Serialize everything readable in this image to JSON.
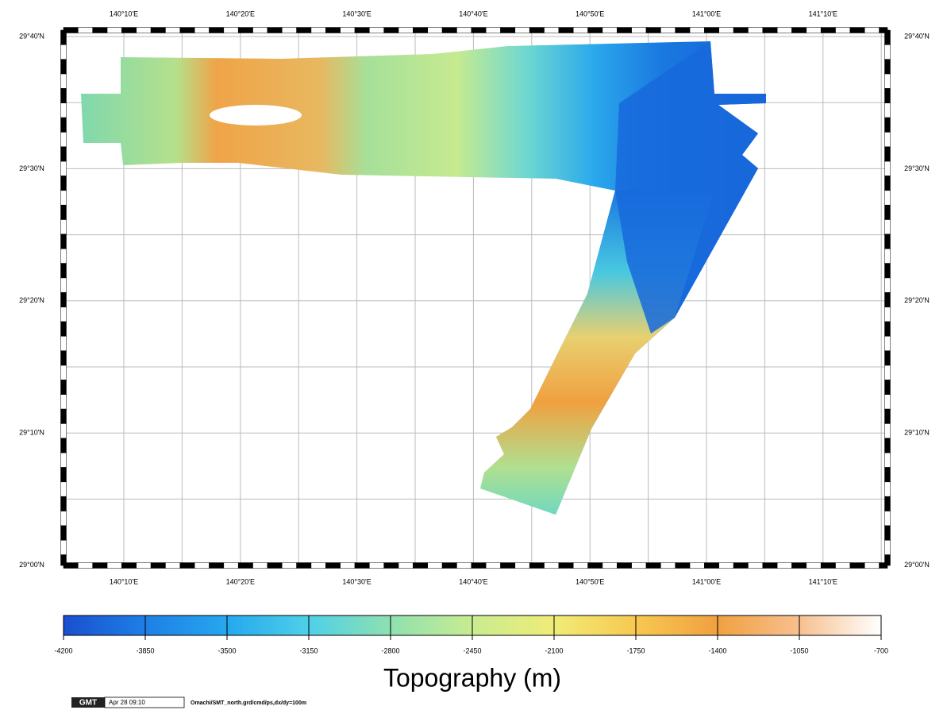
{
  "map": {
    "lon_labels": [
      "140°10'E",
      "140°20'E",
      "140°30'E",
      "140°40'E",
      "140°50'E",
      "141°00'E",
      "141°10'E"
    ],
    "lat_labels": [
      "29°40'N",
      "29°30'N",
      "29°20'N",
      "29°10'N",
      "29°00'N"
    ],
    "colorbar": {
      "ticks": [
        -4200,
        -3850,
        -3500,
        -3150,
        -2800,
        -2450,
        -2100,
        -1750,
        -1400,
        -1050,
        -700
      ],
      "title": "Topography (m)"
    },
    "stamp": {
      "logo": "GMT",
      "time": "Apr 28 09:10",
      "command": "Omachi/SMT_north.grd/cmd/ps,dx/dy=100m"
    }
  }
}
